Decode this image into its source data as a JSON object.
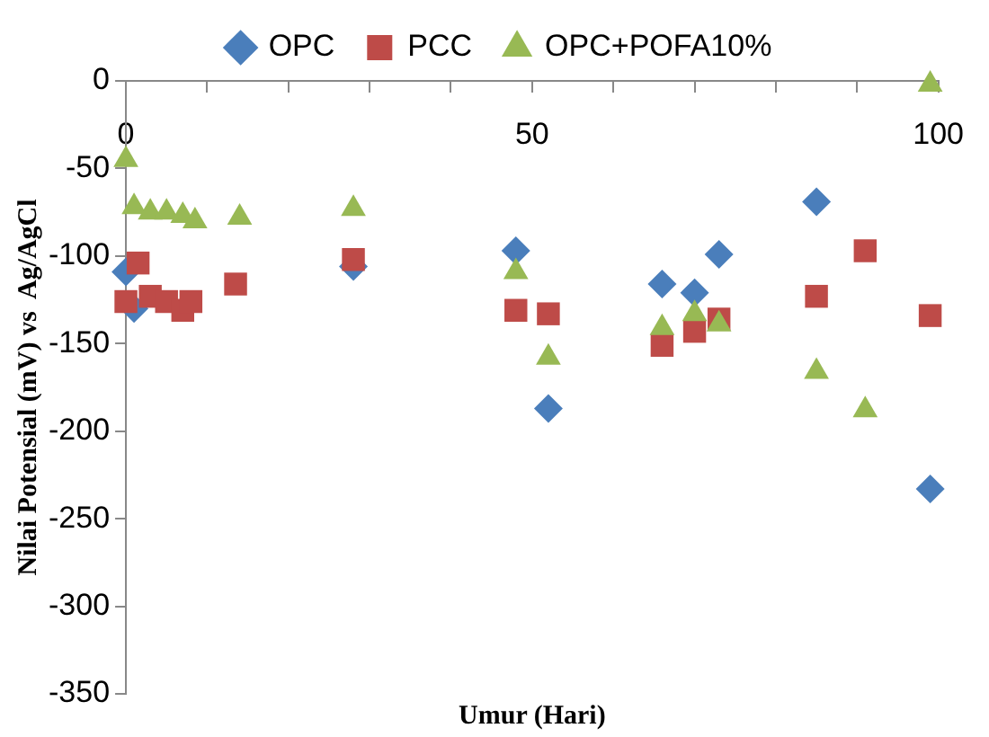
{
  "chart_data": {
    "type": "scatter",
    "xlabel": "Umur (Hari)",
    "ylabel": "Nilai Potensial (mV) vs  Ag/AgCl",
    "xlim": [
      0,
      100
    ],
    "xticks": [
      0,
      {
        "value": 10,
        "label": null
      },
      {
        "value": 20,
        "label": null
      },
      {
        "value": 30,
        "label": null
      },
      {
        "value": 40,
        "label": null
      },
      50,
      {
        "value": 60,
        "label": null
      },
      {
        "value": 70,
        "label": null
      },
      {
        "value": 80,
        "label": null
      },
      {
        "value": 90,
        "label": null
      },
      100
    ],
    "ylim": [
      -350,
      0
    ],
    "yticks": [
      -350,
      -300,
      -250,
      -200,
      -150,
      -100,
      -50,
      0
    ],
    "grid": false,
    "legend": "top",
    "series": [
      {
        "name": "OPC",
        "color": "#4a7ebb",
        "marker": "diamond",
        "x": [
          0,
          1,
          28,
          48,
          52,
          66,
          70,
          73,
          85,
          99
        ],
        "values": [
          -109,
          -130,
          -106,
          -97,
          -187,
          -116,
          -121,
          -99,
          -69,
          -233
        ]
      },
      {
        "name": "PCC",
        "color": "#be4b48",
        "marker": "square",
        "x": [
          0,
          1.5,
          3,
          5,
          7,
          8,
          13.5,
          28,
          48,
          52,
          66,
          70,
          73,
          85,
          91,
          99
        ],
        "values": [
          -126,
          -104,
          -123,
          -126,
          -131,
          -126,
          -116,
          -102,
          -131,
          -133,
          -151,
          -143,
          -136,
          -123,
          -97,
          -134
        ]
      },
      {
        "name": "OPC+POFA10%",
        "color": "#98b954",
        "marker": "triangle",
        "x": [
          0,
          1,
          3,
          5,
          7,
          8.5,
          14,
          28,
          48,
          52,
          66,
          70,
          73,
          85,
          91,
          99
        ],
        "values": [
          -45,
          -72,
          -75,
          -75,
          -77,
          -80,
          -78,
          -73,
          -109,
          -158,
          -141,
          -133,
          -139,
          -166,
          -188,
          -2
        ]
      }
    ]
  }
}
